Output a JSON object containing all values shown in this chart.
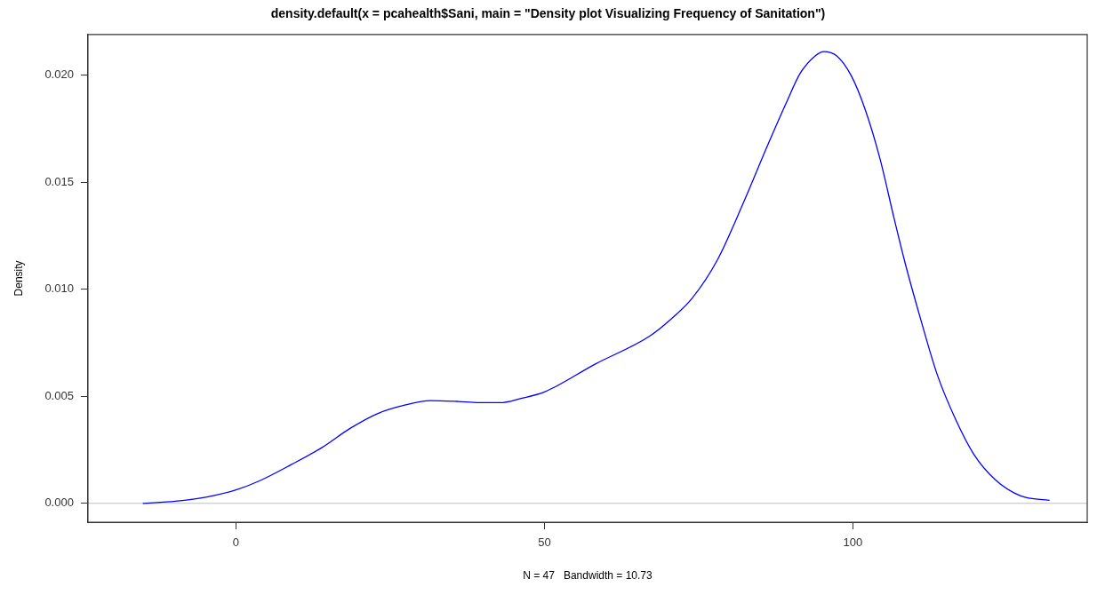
{
  "chart_data": {
    "type": "line",
    "title": "density.default(x = pcahealth$Sani, main = \"Density plot Visualizing Frequency of Sanitation\")",
    "xlabel": "N = 47   Bandwidth = 10.73",
    "ylabel": "Density",
    "x": [
      -15.1,
      -9.8,
      -4.7,
      0,
      3.8,
      8.9,
      13.9,
      18.5,
      23,
      27.5,
      31.5,
      36,
      39.4,
      42.8,
      46.2,
      50,
      58.2,
      67,
      70.5,
      74,
      78.1,
      82.2,
      86.3,
      89.2,
      91.5,
      93.9,
      95.3,
      97.4,
      99.7,
      102,
      104.4,
      106.7,
      108.5,
      110.8,
      113.7,
      116.7,
      119.6,
      123.1,
      127.2,
      131.9
    ],
    "series": [
      {
        "color": "#0000ff",
        "values": [
          0,
          0.0001,
          0.0003,
          0.00063,
          0.00105,
          0.0018,
          0.0026,
          0.0035,
          0.0042,
          0.0046,
          0.0048,
          0.00476,
          0.0047,
          0.0047,
          0.0049,
          0.0052,
          0.0065,
          0.0078,
          0.0086,
          0.0096,
          0.0114,
          0.014,
          0.0168,
          0.0187,
          0.0201,
          0.0209,
          0.0211,
          0.0209,
          0.02,
          0.0184,
          0.0161,
          0.0133,
          0.0112,
          0.0088,
          0.006,
          0.0039,
          0.0023,
          0.0011,
          0.00035,
          0.00014
        ]
      }
    ],
    "xlim": [
      -24,
      138
    ],
    "xticks": [
      0,
      50,
      100
    ],
    "ylim": [
      -0.00088,
      0.0219
    ],
    "yticks": [
      {
        "value": 0,
        "label": "0.000"
      },
      {
        "value": 0.005,
        "label": "0.005"
      },
      {
        "value": 0.01,
        "label": "0.010"
      },
      {
        "value": 0.015,
        "label": "0.015"
      },
      {
        "value": 0.02,
        "label": "0.020"
      }
    ],
    "ref_lines": [
      {
        "axis": "y",
        "value": 0,
        "color": "#bebebe"
      }
    ],
    "grid": false,
    "legend": false,
    "marker": "none",
    "line_style": "solid"
  }
}
